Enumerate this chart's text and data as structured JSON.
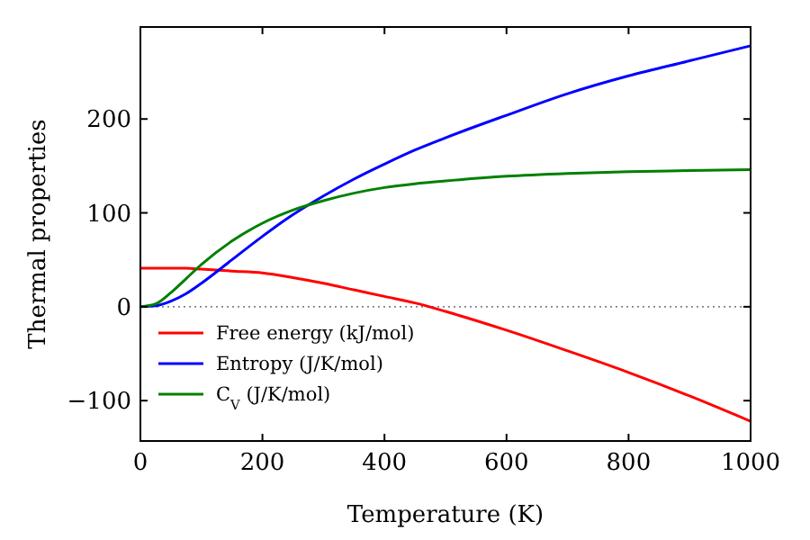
{
  "chart_data": {
    "type": "line",
    "xlabel": "Temperature (K)",
    "ylabel": "Thermal properties",
    "x": [
      0,
      25,
      50,
      75,
      100,
      150,
      200,
      250,
      300,
      350,
      400,
      450,
      500,
      600,
      700,
      800,
      900,
      1000
    ],
    "series": [
      {
        "name": "Free energy (kJ/mol)",
        "color": "#ff0000",
        "values": [
          41,
          41,
          41,
          41,
          40,
          38,
          36,
          31,
          25,
          18,
          11,
          4,
          -5,
          -25,
          -47,
          -70,
          -95,
          -122
        ]
      },
      {
        "name": "Entropy (J/K/mol)",
        "color": "#0000ff",
        "values": [
          0,
          1,
          6,
          14,
          25,
          50,
          75,
          98,
          118,
          136,
          152,
          167,
          180,
          204,
          227,
          246,
          262,
          278
        ]
      },
      {
        "name": "C$_{V}$ (J/K/mol)",
        "color": "#008000",
        "values": [
          0,
          3,
          15,
          30,
          45,
          70,
          89,
          103,
          113,
          121,
          127,
          131,
          134,
          139,
          142,
          144,
          145,
          146
        ]
      }
    ],
    "xlim": [
      0,
      1000
    ],
    "xticks": [
      0,
      200,
      400,
      600,
      800,
      1000
    ],
    "ylim": [
      -143,
      298
    ],
    "yticks": [
      -100,
      0,
      100,
      200
    ],
    "ref_lines": [
      {
        "axis": "y",
        "value": 0,
        "color": "#555555",
        "line_style": "dotted"
      }
    ],
    "legend": "bottom left",
    "line_style": "solid",
    "marker": "none",
    "grid": false
  }
}
